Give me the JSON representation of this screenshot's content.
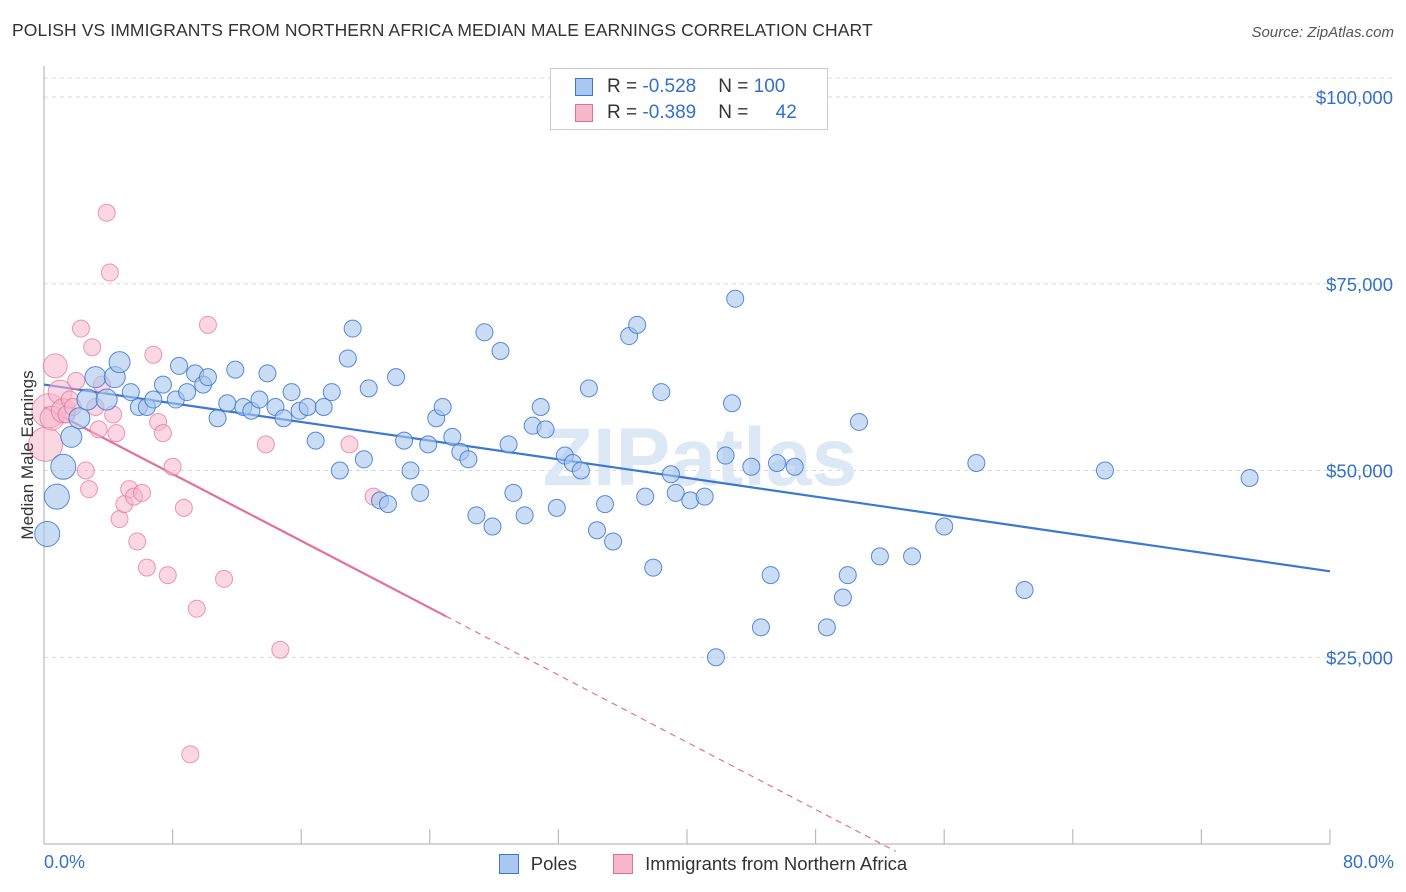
{
  "title": "POLISH VS IMMIGRANTS FROM NORTHERN AFRICA MEDIAN MALE EARNINGS CORRELATION CHART",
  "source": "Source: ZipAtlas.com",
  "watermark": "ZIPatlas",
  "colors": {
    "blue": "#3a78d4",
    "blue_fill": "#a9c7ef",
    "pink": "#e46f9c",
    "pink_fill": "#f6b7ca",
    "tick_text": "#3370cc",
    "grid": "#d8d8d8"
  },
  "legend_top": [
    {
      "r_label": "R = ",
      "r_value": "-0.528",
      "n_label": "N = ",
      "n_value": "100"
    },
    {
      "r_label": "R = ",
      "r_value": "-0.389",
      "n_label": "N = ",
      "n_value": "42"
    }
  ],
  "legend_bottom": [
    "Poles",
    "Immigrants from Northern Africa"
  ],
  "x_min_label": "0.0%",
  "x_max_label": "80.0%",
  "chart_data": {
    "type": "scatter",
    "title": "POLISH VS IMMIGRANTS FROM NORTHERN AFRICA MEDIAN MALE EARNINGS CORRELATION CHART",
    "xlabel": "",
    "ylabel": "Median Male Earnings",
    "xlim": [
      0,
      80
    ],
    "ylim": [
      0,
      100000
    ],
    "y_ticks": [
      25000,
      50000,
      75000,
      100000
    ],
    "y_tick_labels": [
      "$25,000",
      "$50,000",
      "$75,000",
      "$100,000"
    ],
    "grid": true,
    "legend_placement": "top-center",
    "series": [
      {
        "name": "Poles",
        "color": "#3a78d4",
        "trend": {
          "x": [
            0,
            80
          ],
          "y": [
            61500,
            36500
          ]
        },
        "points": [
          [
            0.2,
            41500
          ],
          [
            0.8,
            46500
          ],
          [
            1.2,
            50500
          ],
          [
            1.7,
            54500
          ],
          [
            2.2,
            57000
          ],
          [
            2.7,
            59500
          ],
          [
            3.2,
            62500
          ],
          [
            3.9,
            59500
          ],
          [
            4.4,
            62500
          ],
          [
            4.7,
            64500
          ],
          [
            5.4,
            60500
          ],
          [
            5.9,
            58500
          ],
          [
            6.4,
            58500
          ],
          [
            6.8,
            59500
          ],
          [
            7.4,
            61500
          ],
          [
            8.2,
            59500
          ],
          [
            8.4,
            64000
          ],
          [
            8.9,
            60500
          ],
          [
            9.4,
            63000
          ],
          [
            9.9,
            61500
          ],
          [
            10.2,
            62500
          ],
          [
            10.8,
            57000
          ],
          [
            11.4,
            59000
          ],
          [
            11.9,
            63500
          ],
          [
            12.4,
            58500
          ],
          [
            12.9,
            58000
          ],
          [
            13.4,
            59500
          ],
          [
            13.9,
            63000
          ],
          [
            14.4,
            58500
          ],
          [
            14.9,
            57000
          ],
          [
            15.4,
            60500
          ],
          [
            15.9,
            58000
          ],
          [
            16.4,
            58500
          ],
          [
            16.9,
            54000
          ],
          [
            17.4,
            58500
          ],
          [
            17.9,
            60500
          ],
          [
            18.4,
            50000
          ],
          [
            18.9,
            65000
          ],
          [
            19.2,
            69000
          ],
          [
            19.9,
            51500
          ],
          [
            20.2,
            61000
          ],
          [
            20.9,
            46000
          ],
          [
            21.4,
            45500
          ],
          [
            21.9,
            62500
          ],
          [
            22.4,
            54000
          ],
          [
            22.8,
            50000
          ],
          [
            23.4,
            47000
          ],
          [
            23.9,
            53500
          ],
          [
            24.4,
            57000
          ],
          [
            24.8,
            58500
          ],
          [
            25.4,
            54500
          ],
          [
            25.9,
            52500
          ],
          [
            26.4,
            51500
          ],
          [
            26.9,
            44000
          ],
          [
            27.4,
            68500
          ],
          [
            27.9,
            42500
          ],
          [
            28.4,
            66000
          ],
          [
            28.9,
            53500
          ],
          [
            29.2,
            47000
          ],
          [
            29.9,
            44000
          ],
          [
            30.4,
            56000
          ],
          [
            30.9,
            58500
          ],
          [
            31.2,
            55500
          ],
          [
            31.9,
            45000
          ],
          [
            32.4,
            52000
          ],
          [
            32.9,
            51000
          ],
          [
            33.4,
            50000
          ],
          [
            33.9,
            61000
          ],
          [
            34.4,
            42000
          ],
          [
            34.9,
            45500
          ],
          [
            35.4,
            40500
          ],
          [
            36.4,
            68000
          ],
          [
            36.9,
            69500
          ],
          [
            37.4,
            46500
          ],
          [
            37.9,
            37000
          ],
          [
            38.4,
            60500
          ],
          [
            39.0,
            49500
          ],
          [
            39.3,
            47000
          ],
          [
            40.2,
            46000
          ],
          [
            41.1,
            46500
          ],
          [
            41.8,
            25000
          ],
          [
            42.4,
            52000
          ],
          [
            42.8,
            59000
          ],
          [
            43.0,
            73000
          ],
          [
            44.0,
            50500
          ],
          [
            44.6,
            29000
          ],
          [
            45.2,
            36000
          ],
          [
            45.6,
            51000
          ],
          [
            46.7,
            50500
          ],
          [
            48.7,
            29000
          ],
          [
            49.7,
            33000
          ],
          [
            50.0,
            36000
          ],
          [
            50.7,
            56500
          ],
          [
            52.0,
            38500
          ],
          [
            54.0,
            38500
          ],
          [
            56.0,
            42500
          ],
          [
            58.0,
            51000
          ],
          [
            61.0,
            34000
          ],
          [
            75.0,
            49000
          ],
          [
            66.0,
            50000
          ]
        ]
      },
      {
        "name": "Immigrants from Northern Africa",
        "color": "#e46f9c",
        "trend": {
          "x": [
            0,
            25
          ],
          "y": [
            58500,
            30500
          ]
        },
        "trend_dashed": {
          "x": [
            25,
            53
          ],
          "y": [
            30500,
            -1000
          ]
        },
        "points": [
          [
            0.1,
            53500
          ],
          [
            0.3,
            58000
          ],
          [
            0.5,
            57000
          ],
          [
            0.7,
            64000
          ],
          [
            1.0,
            60500
          ],
          [
            1.2,
            58000
          ],
          [
            1.4,
            57500
          ],
          [
            1.6,
            59500
          ],
          [
            1.8,
            58500
          ],
          [
            2.0,
            62000
          ],
          [
            2.3,
            69000
          ],
          [
            2.6,
            50000
          ],
          [
            2.8,
            47500
          ],
          [
            3.0,
            66500
          ],
          [
            3.2,
            58500
          ],
          [
            3.4,
            55500
          ],
          [
            3.6,
            61500
          ],
          [
            3.9,
            84500
          ],
          [
            4.1,
            76500
          ],
          [
            4.3,
            57500
          ],
          [
            4.5,
            55000
          ],
          [
            4.7,
            43500
          ],
          [
            5.0,
            45500
          ],
          [
            5.3,
            47500
          ],
          [
            5.6,
            46500
          ],
          [
            5.8,
            40500
          ],
          [
            6.1,
            47000
          ],
          [
            6.4,
            37000
          ],
          [
            6.8,
            65500
          ],
          [
            7.1,
            56500
          ],
          [
            7.4,
            55000
          ],
          [
            7.7,
            36000
          ],
          [
            8.0,
            50500
          ],
          [
            8.7,
            45000
          ],
          [
            9.1,
            12000
          ],
          [
            9.5,
            31500
          ],
          [
            10.2,
            69500
          ],
          [
            11.2,
            35500
          ],
          [
            13.8,
            53500
          ],
          [
            14.7,
            26000
          ],
          [
            19.0,
            53500
          ],
          [
            20.5,
            46500
          ]
        ]
      }
    ]
  }
}
